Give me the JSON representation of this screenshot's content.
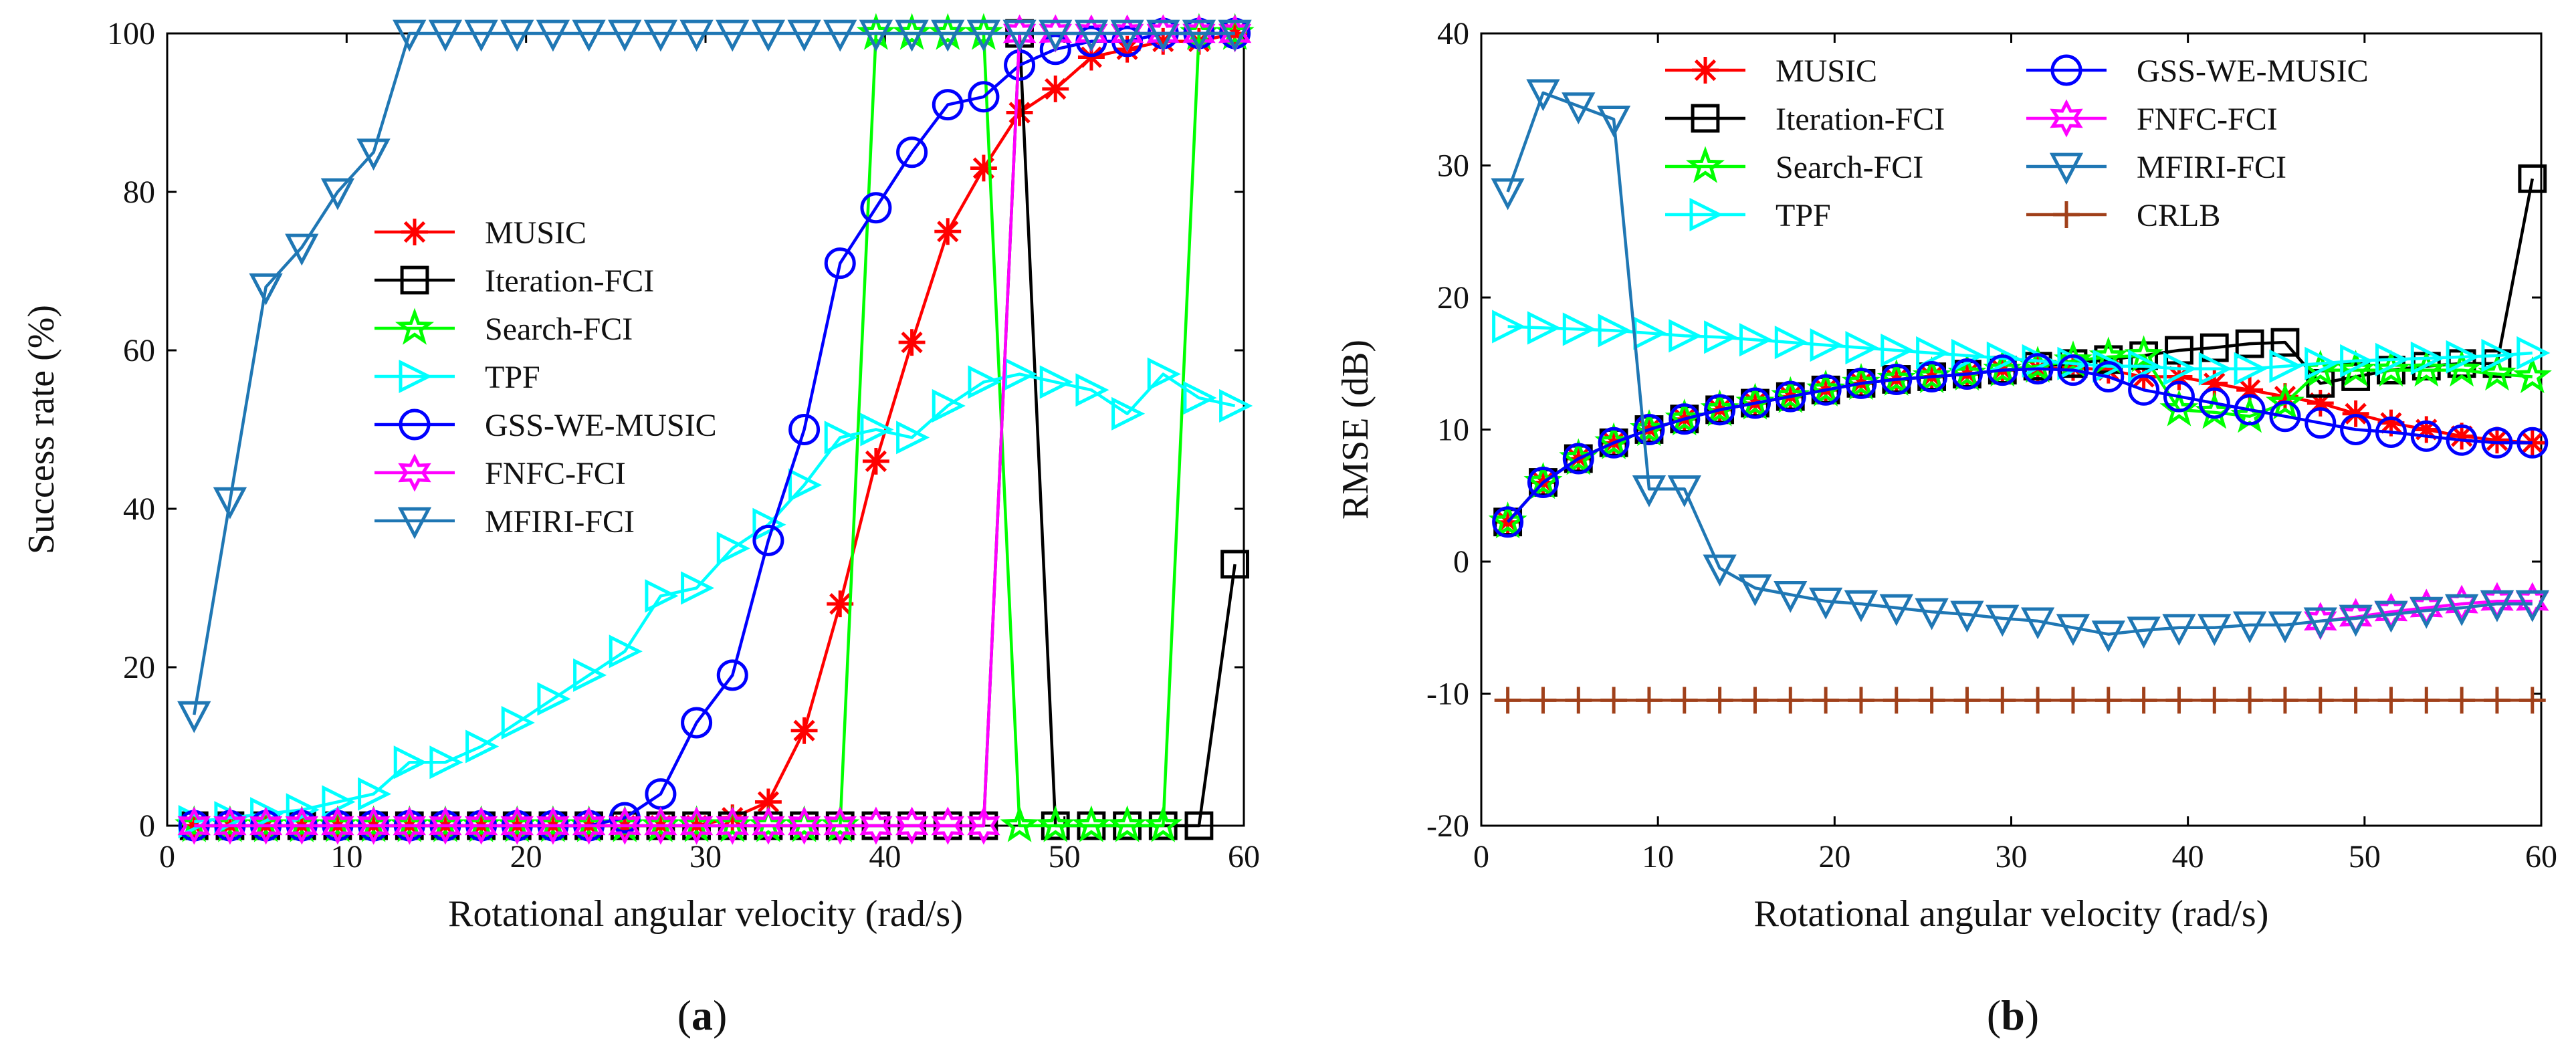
{
  "chart_data": [
    {
      "panel_id": "a",
      "type": "line",
      "caption": "(a)",
      "caption_parts": [
        "(",
        "a",
        ")"
      ],
      "xlabel": "Rotational angular velocity (rad/s)",
      "ylabel": "Success rate (%)",
      "xlim": [
        0,
        60
      ],
      "ylim": [
        0,
        100
      ],
      "xticks": [
        0,
        10,
        20,
        30,
        40,
        50,
        60
      ],
      "yticks": [
        0,
        20,
        40,
        60,
        80,
        100
      ],
      "legend_position": "center-left",
      "x": [
        1.5,
        3.5,
        5.5,
        7.5,
        9.5,
        11.5,
        13.5,
        15.5,
        17.5,
        19.5,
        21.5,
        23.5,
        25.5,
        27.5,
        29.5,
        31.5,
        33.5,
        35.5,
        37.5,
        39.5,
        41.5,
        43.5,
        45.5,
        47.5,
        49.5,
        51.5,
        53.5,
        55.5,
        57.5,
        59.5
      ],
      "series": [
        {
          "name": "MUSIC",
          "color": "#ff0000",
          "marker": "asterisk",
          "values": [
            0,
            0,
            0,
            0,
            0,
            0,
            0,
            0,
            0,
            0,
            0,
            0,
            0,
            0,
            0,
            1,
            3,
            12,
            28,
            46,
            61,
            75,
            83,
            90,
            93,
            97,
            98,
            99,
            99,
            100
          ]
        },
        {
          "name": "Iteration-FCI",
          "color": "#000000",
          "marker": "square",
          "values": [
            0,
            0,
            0,
            0,
            0,
            0,
            0,
            0,
            0,
            0,
            0,
            0,
            0,
            0,
            0,
            0,
            0,
            0,
            0,
            0,
            0,
            0,
            0,
            100,
            0,
            0,
            0,
            0,
            0,
            33
          ]
        },
        {
          "name": "Search-FCI",
          "color": "#00ff00",
          "marker": "star",
          "values": [
            0,
            0,
            0,
            0,
            0,
            0,
            0,
            0,
            0,
            0,
            0,
            0,
            0,
            0,
            0,
            0,
            0,
            0,
            0,
            100,
            100,
            100,
            100,
            0,
            0,
            0,
            0,
            0,
            100,
            100
          ]
        },
        {
          "name": "TPF",
          "color": "#00ffff",
          "marker": "triangle-right",
          "values": [
            0.5,
            1,
            1.5,
            2,
            3,
            4,
            8,
            8,
            10,
            13,
            16,
            19,
            22,
            29,
            30,
            35,
            38,
            43,
            49,
            50,
            49,
            53,
            56,
            57,
            56,
            55,
            52,
            57,
            54,
            53
          ]
        },
        {
          "name": "GSS-WE-MUSIC",
          "color": "#0000ff",
          "marker": "circle",
          "values": [
            0,
            0,
            0,
            0,
            0,
            0,
            0,
            0,
            0,
            0,
            0,
            0,
            1,
            4,
            13,
            19,
            36,
            50,
            71,
            78,
            85,
            91,
            92,
            96,
            98,
            99,
            99,
            100,
            100,
            100
          ]
        },
        {
          "name": "FNFC-FCI",
          "color": "#ff00ff",
          "marker": "hexagram",
          "values": [
            0,
            0,
            0,
            0,
            0,
            0,
            0,
            0,
            0,
            0,
            0,
            0,
            0,
            0,
            0,
            0,
            0,
            0,
            0,
            0,
            0,
            0,
            0,
            100,
            100,
            100,
            100,
            100,
            100,
            100
          ]
        },
        {
          "name": "MFIRI-FCI",
          "color": "#1f77b4",
          "marker": "triangle-down",
          "values": [
            14,
            41,
            68,
            73,
            80,
            85,
            100,
            100,
            100,
            100,
            100,
            100,
            100,
            100,
            100,
            100,
            100,
            100,
            100,
            100,
            100,
            100,
            100,
            100,
            100,
            100,
            100,
            100,
            100,
            100
          ]
        }
      ]
    },
    {
      "panel_id": "b",
      "type": "line",
      "caption": "(b)",
      "caption_parts": [
        "(",
        "b",
        ")"
      ],
      "xlabel": "Rotational angular velocity (rad/s)",
      "ylabel": "RMSE (dB)",
      "xlim": [
        0,
        60
      ],
      "ylim": [
        -20,
        40
      ],
      "xticks": [
        0,
        10,
        20,
        30,
        40,
        50,
        60
      ],
      "yticks": [
        -20,
        -10,
        0,
        10,
        20,
        30,
        40
      ],
      "legend_position": "top",
      "x": [
        1.5,
        3.5,
        5.5,
        7.5,
        9.5,
        11.5,
        13.5,
        15.5,
        17.5,
        19.5,
        21.5,
        23.5,
        25.5,
        27.5,
        29.5,
        31.5,
        33.5,
        35.5,
        37.5,
        39.5,
        41.5,
        43.5,
        45.5,
        47.5,
        49.5,
        51.5,
        53.5,
        55.5,
        57.5,
        59.5
      ],
      "series": [
        {
          "name": "MUSIC",
          "color": "#ff0000",
          "marker": "asterisk",
          "values": [
            3,
            6,
            7.8,
            9,
            10,
            10.8,
            11.5,
            12,
            12.5,
            13,
            13.5,
            13.8,
            14,
            14.2,
            14.5,
            14.6,
            14.7,
            14.5,
            14,
            14,
            13.5,
            13,
            12.5,
            12,
            11.2,
            10.5,
            10,
            9.5,
            9.2,
            9
          ]
        },
        {
          "name": "Iteration-FCI",
          "color": "#000000",
          "marker": "square",
          "values": [
            3,
            6,
            7.8,
            9,
            10,
            10.8,
            11.5,
            12,
            12.5,
            13,
            13.5,
            13.8,
            14,
            14.2,
            14.5,
            14.8,
            15,
            15.3,
            15.6,
            16,
            16.2,
            16.5,
            16.6,
            13.5,
            14,
            14.5,
            14.8,
            15,
            15,
            29
          ]
        },
        {
          "name": "Search-FCI",
          "color": "#00ff00",
          "marker": "star",
          "values": [
            3,
            6,
            7.8,
            9,
            10,
            10.8,
            11.5,
            12,
            12.5,
            13,
            13.5,
            13.8,
            14,
            14.2,
            14.5,
            14.8,
            15.2,
            15.5,
            15.6,
            11.5,
            11.3,
            11,
            12,
            14.5,
            14.5,
            14.5,
            14.5,
            14.5,
            14.2,
            14
          ]
        },
        {
          "name": "TPF",
          "color": "#00ffff",
          "marker": "triangle-right",
          "values": [
            17.8,
            17.7,
            17.6,
            17.5,
            17.3,
            17.1,
            17,
            16.8,
            16.6,
            16.4,
            16.2,
            16,
            15.8,
            15.6,
            15.4,
            15.2,
            15,
            14.8,
            14.8,
            14.6,
            14.6,
            14.6,
            14.8,
            15,
            15.2,
            15.3,
            15.4,
            15.5,
            15.6,
            15.8
          ]
        },
        {
          "name": "GSS-WE-MUSIC",
          "color": "#0000ff",
          "marker": "circle",
          "values": [
            3,
            6,
            7.8,
            9,
            10,
            10.8,
            11.5,
            12,
            12.5,
            13,
            13.5,
            13.8,
            14,
            14.2,
            14.5,
            14.6,
            14.5,
            14,
            13,
            12.5,
            12,
            11.5,
            11,
            10.5,
            10,
            9.8,
            9.5,
            9.2,
            9,
            9
          ]
        },
        {
          "name": "FNFC-FCI",
          "color": "#ff00ff",
          "marker": "hexagram",
          "values": [
            null,
            null,
            null,
            null,
            null,
            null,
            null,
            null,
            null,
            null,
            null,
            null,
            null,
            null,
            null,
            null,
            null,
            null,
            null,
            null,
            null,
            null,
            null,
            -4.5,
            -4.2,
            -3.8,
            -3.5,
            -3.2,
            -3,
            -3
          ]
        },
        {
          "name": "MFIRI-FCI",
          "color": "#1f77b4",
          "marker": "triangle-down",
          "values": [
            28,
            35.5,
            34.5,
            33.5,
            5.5,
            5.5,
            -0.5,
            -2,
            -2.5,
            -3,
            -3.2,
            -3.5,
            -3.8,
            -4,
            -4.3,
            -4.5,
            -5,
            -5.5,
            -5.2,
            -5,
            -5,
            -4.8,
            -4.8,
            -4.5,
            -4.3,
            -4,
            -3.7,
            -3.5,
            -3.2,
            -3.2
          ]
        },
        {
          "name": "CRLB",
          "color": "#a0401a",
          "marker": "plus",
          "values": [
            -10.5,
            -10.5,
            -10.5,
            -10.5,
            -10.5,
            -10.5,
            -10.5,
            -10.5,
            -10.5,
            -10.5,
            -10.5,
            -10.5,
            -10.5,
            -10.5,
            -10.5,
            -10.5,
            -10.5,
            -10.5,
            -10.5,
            -10.5,
            -10.5,
            -10.5,
            -10.5,
            -10.5,
            -10.5,
            -10.5,
            -10.5,
            -10.5,
            -10.5,
            -10.5
          ]
        }
      ]
    }
  ]
}
